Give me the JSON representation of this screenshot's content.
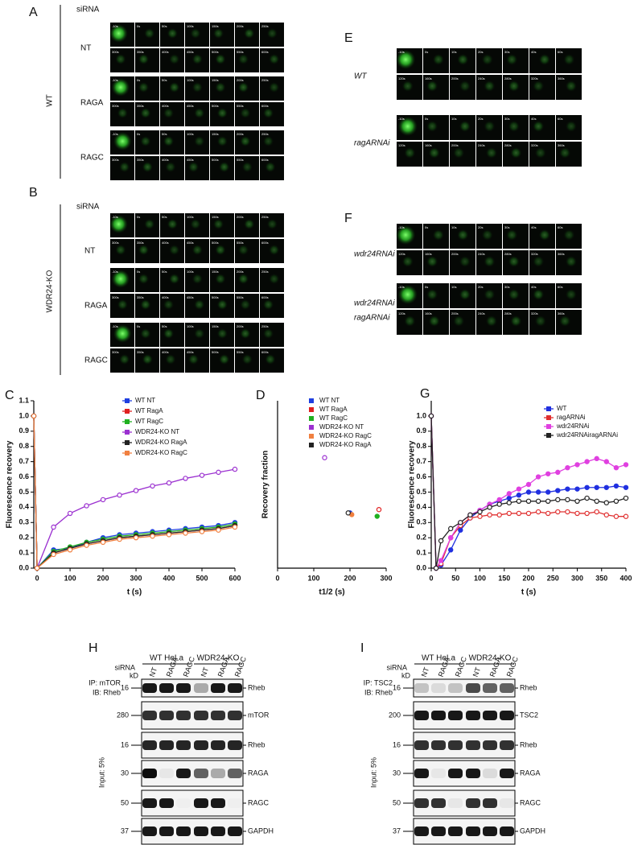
{
  "panels": {
    "A": {
      "letter": "A",
      "siRNA": "siRNA",
      "group": "WT",
      "rows": [
        {
          "label": [
            "NT"
          ],
          "frames": [
            "-10s",
            "0s",
            "50s",
            "100s",
            "150s",
            "200s",
            "250s",
            "300s",
            "350s",
            "400s",
            "450s",
            "500s",
            "550s",
            "600s"
          ]
        },
        {
          "label": [
            "RAGA"
          ],
          "frames": [
            "-10s",
            "0s",
            "50s",
            "100s",
            "150s",
            "200s",
            "250s",
            "300s",
            "350s",
            "400s",
            "450s",
            "500s",
            "550s",
            "600s"
          ]
        },
        {
          "label": [
            "RAGC"
          ],
          "frames": [
            "-10s",
            "0s",
            "50s",
            "100s",
            "150s",
            "200s",
            "250s",
            "300s",
            "350s",
            "400s",
            "450s",
            "500s",
            "550s",
            "600s"
          ]
        }
      ]
    },
    "B": {
      "letter": "B",
      "siRNA": "siRNA",
      "group": "WDR24-KO",
      "rows": [
        {
          "label": [
            "NT"
          ],
          "frames": [
            "-10s",
            "0s",
            "50s",
            "100s",
            "150s",
            "200s",
            "250s",
            "300s",
            "350s",
            "400s",
            "450s",
            "500s",
            "550s",
            "600s"
          ]
        },
        {
          "label": [
            "RAGA"
          ],
          "frames": [
            "-10s",
            "0s",
            "50s",
            "100s",
            "150s",
            "200s",
            "250s",
            "300s",
            "350s",
            "400s",
            "450s",
            "500s",
            "550s",
            "600s"
          ]
        },
        {
          "label": [
            "RAGC"
          ],
          "frames": [
            "-10s",
            "0s",
            "50s",
            "100s",
            "150s",
            "200s",
            "250s",
            "300s",
            "350s",
            "400s",
            "450s",
            "500s",
            "550s",
            "600s"
          ]
        }
      ]
    },
    "E": {
      "letter": "E",
      "rows": [
        {
          "label": [
            "WT"
          ],
          "frames": [
            "-10s",
            "0s",
            "10s",
            "20s",
            "30s",
            "40s",
            "60s",
            "120s",
            "160s",
            "200s",
            "240s",
            "280s",
            "320s",
            "360s"
          ]
        },
        {
          "label": [
            "ragARNAi"
          ],
          "frames": [
            "-10s",
            "0s",
            "10s",
            "20s",
            "30s",
            "40s",
            "60s",
            "120s",
            "160s",
            "200s",
            "240s",
            "280s",
            "320s",
            "360s"
          ]
        }
      ]
    },
    "F": {
      "letter": "F",
      "rows": [
        {
          "label": [
            "wdr24RNAi"
          ],
          "frames": [
            "-10s",
            "0s",
            "10s",
            "20s",
            "30s",
            "40s",
            "60s",
            "120s",
            "160s",
            "200s",
            "240s",
            "280s",
            "320s",
            "360s"
          ]
        },
        {
          "label": [
            "wdr24RNAi",
            "ragARNAi"
          ],
          "frames": [
            "-10s",
            "0s",
            "10s",
            "20s",
            "30s",
            "40s",
            "60s",
            "120s",
            "160s",
            "200s",
            "240s",
            "280s",
            "320s",
            "360s"
          ]
        }
      ]
    },
    "H": {
      "letter": "H",
      "groups": [
        "WT HeLa",
        "WDR24-KO"
      ],
      "siRNA": "siRNA",
      "kD": "kD",
      "lanes": [
        "NT",
        "RAGA",
        "RAGC",
        "NT",
        "RAGA",
        "RAGC"
      ],
      "ip": [
        "IP: mTOR",
        "IB: Rheb"
      ],
      "input": "Input: 5%",
      "rows": [
        {
          "marker": 16,
          "protein": "Rheb"
        },
        {
          "marker": 280,
          "protein": "mTOR"
        },
        {
          "marker": 16,
          "protein": "Rheb"
        },
        {
          "marker": 30,
          "protein": "RAGA"
        },
        {
          "marker": 50,
          "protein": "RAGC"
        },
        {
          "marker": 37,
          "protein": "GAPDH"
        }
      ]
    },
    "I": {
      "letter": "I",
      "groups": [
        "WT HeLa",
        "WDR24-KO"
      ],
      "siRNA": "siRNA",
      "kD": "kD",
      "lanes": [
        "NT",
        "RAGA",
        "RAGC",
        "NT",
        "RAGA",
        "RAGC"
      ],
      "ip": [
        "IP: TSC2",
        "IB: Rheb"
      ],
      "input": "Input: 5%",
      "rows": [
        {
          "marker": 16,
          "protein": "Rheb"
        },
        {
          "marker": 200,
          "protein": "TSC2"
        },
        {
          "marker": 16,
          "protein": "Rheb"
        },
        {
          "marker": 30,
          "protein": "RAGA"
        },
        {
          "marker": 50,
          "protein": "RAGC"
        },
        {
          "marker": 37,
          "protein": "GAPDH"
        }
      ]
    }
  },
  "chart_data": [
    {
      "type": "line",
      "panel": "C",
      "xlabel": "t (s)",
      "ylabel": "Fluorescence recovery",
      "x": [
        -10,
        0,
        50,
        100,
        150,
        200,
        250,
        300,
        350,
        400,
        450,
        500,
        550,
        600
      ],
      "xlim": [
        -10,
        600
      ],
      "xticks": [
        0,
        100,
        200,
        300,
        400,
        500,
        600
      ],
      "ylim": [
        0,
        1.1
      ],
      "yticks": [
        {
          "value": 0,
          "label": "0.0"
        },
        {
          "value": 0.1,
          "label": "0.1"
        },
        {
          "value": 0.2,
          "label": "0.2"
        },
        {
          "value": 0.3,
          "label": "0.3"
        },
        {
          "value": 0.4,
          "label": "0.4"
        },
        {
          "value": 0.5,
          "label": "0.5"
        },
        {
          "value": 0.6,
          "label": "0.6"
        },
        {
          "value": 0.7,
          "label": "0.7"
        },
        {
          "value": 0.8,
          "label": "0.8"
        },
        {
          "value": 0.9,
          "label": "0.9"
        },
        {
          "value": 1.0,
          "label": "1.0"
        },
        {
          "value": 1.1,
          "label": "1.1"
        }
      ],
      "series": [
        {
          "name": "WT NT",
          "color": "#1f3fe0",
          "values": [
            1.0,
            0,
            0.12,
            0.13,
            0.17,
            0.2,
            0.22,
            0.23,
            0.24,
            0.25,
            0.26,
            0.27,
            0.28,
            0.3
          ]
        },
        {
          "name": "WT RagA",
          "color": "#e02020",
          "values": [
            1.0,
            0,
            0.1,
            0.13,
            0.16,
            0.18,
            0.2,
            0.21,
            0.22,
            0.23,
            0.24,
            0.25,
            0.26,
            0.28
          ]
        },
        {
          "name": "WT RagC",
          "color": "#20b020",
          "values": [
            1.0,
            0,
            0.11,
            0.14,
            0.17,
            0.19,
            0.21,
            0.22,
            0.23,
            0.24,
            0.25,
            0.26,
            0.27,
            0.29
          ]
        },
        {
          "name": "WDR24-KO NT",
          "color": "#9b30d0",
          "values": [
            1.0,
            0,
            0.27,
            0.36,
            0.41,
            0.45,
            0.48,
            0.51,
            0.54,
            0.56,
            0.59,
            0.61,
            0.63,
            0.65
          ]
        },
        {
          "name": "WDR24-KO RagA",
          "color": "#222222",
          "values": [
            1.0,
            0,
            0.1,
            0.13,
            0.16,
            0.18,
            0.2,
            0.21,
            0.22,
            0.23,
            0.24,
            0.25,
            0.26,
            0.28
          ]
        },
        {
          "name": "WDR24-KO RagC",
          "color": "#f08040",
          "values": [
            1.0,
            0,
            0.09,
            0.12,
            0.15,
            0.17,
            0.19,
            0.2,
            0.21,
            0.22,
            0.23,
            0.24,
            0.25,
            0.27
          ]
        }
      ]
    },
    {
      "type": "scatter",
      "panel": "D",
      "xlabel": "t1/2 (s)",
      "ylabel": "Recovery fraction",
      "xlim": [
        0,
        300
      ],
      "xticks": [
        0,
        100,
        200,
        300
      ],
      "ylim": [
        0,
        1
      ],
      "series": [
        {
          "name": "WT NT",
          "color": "#1f3fe0",
          "x": [
            200
          ],
          "values": [
            0.33
          ]
        },
        {
          "name": "WT RagA",
          "color": "#e02020",
          "x": [
            280
          ],
          "values": [
            0.35
          ]
        },
        {
          "name": "WT RagC",
          "color": "#20b020",
          "x": [
            275
          ],
          "values": [
            0.31
          ]
        },
        {
          "name": "WDR24-KO NT",
          "color": "#9b30d0",
          "x": [
            130
          ],
          "values": [
            0.66
          ]
        },
        {
          "name": "WDR24-KO RagC",
          "color": "#f08040",
          "x": [
            205
          ],
          "values": [
            0.32
          ]
        },
        {
          "name": "WDR24-KO RagA",
          "color": "#222222",
          "x": [
            195
          ],
          "values": [
            0.33
          ]
        }
      ]
    },
    {
      "type": "line",
      "panel": "G",
      "xlabel": "t (s)",
      "ylabel": "Fluorescence recovery",
      "x": [
        0,
        10,
        20,
        40,
        60,
        80,
        100,
        120,
        140,
        160,
        180,
        200,
        220,
        240,
        260,
        280,
        300,
        320,
        340,
        360,
        380,
        400
      ],
      "xlim": [
        0,
        400
      ],
      "xticks": [
        0,
        50,
        100,
        150,
        200,
        250,
        300,
        350,
        400
      ],
      "ylim": [
        0,
        1.1
      ],
      "yticks": [
        {
          "value": 0,
          "label": "0.0"
        },
        {
          "value": 0.1,
          "label": "0.1"
        },
        {
          "value": 0.2,
          "label": "0.2"
        },
        {
          "value": 0.3,
          "label": "0.3"
        },
        {
          "value": 0.4,
          "label": "0.4"
        },
        {
          "value": 0.5,
          "label": "0.5"
        },
        {
          "value": 0.6,
          "label": "0.6"
        },
        {
          "value": 0.7,
          "label": "0.7"
        },
        {
          "value": 0.8,
          "label": "0.8"
        },
        {
          "value": 0.9,
          "label": "0.9"
        },
        {
          "value": 1.0,
          "label": "1.0"
        }
      ],
      "series": [
        {
          "name": "WT",
          "color": "#2030e0",
          "values": [
            1.0,
            0,
            0.02,
            0.12,
            0.25,
            0.33,
            0.38,
            0.42,
            0.44,
            0.46,
            0.48,
            0.5,
            0.5,
            0.5,
            0.51,
            0.52,
            0.52,
            0.53,
            0.53,
            0.53,
            0.54,
            0.53
          ]
        },
        {
          "name": "ragARNAi",
          "color": "#e03030",
          "values": [
            1.0,
            0,
            0.03,
            0.2,
            0.28,
            0.33,
            0.34,
            0.35,
            0.35,
            0.36,
            0.36,
            0.36,
            0.37,
            0.36,
            0.37,
            0.37,
            0.36,
            0.36,
            0.37,
            0.35,
            0.34,
            0.34
          ]
        },
        {
          "name": "wdr24RNAi",
          "color": "#e040e0",
          "values": [
            1.0,
            0,
            0.05,
            0.2,
            0.3,
            0.35,
            0.38,
            0.42,
            0.45,
            0.49,
            0.52,
            0.55,
            0.6,
            0.62,
            0.63,
            0.66,
            0.68,
            0.7,
            0.72,
            0.7,
            0.66,
            0.68
          ]
        },
        {
          "name": "wdr24RNAiragARNAi",
          "color": "#222222",
          "values": [
            1.0,
            0,
            0.18,
            0.26,
            0.3,
            0.35,
            0.37,
            0.4,
            0.42,
            0.43,
            0.44,
            0.44,
            0.44,
            0.44,
            0.45,
            0.45,
            0.44,
            0.46,
            0.44,
            0.43,
            0.44,
            0.46
          ]
        }
      ]
    }
  ]
}
